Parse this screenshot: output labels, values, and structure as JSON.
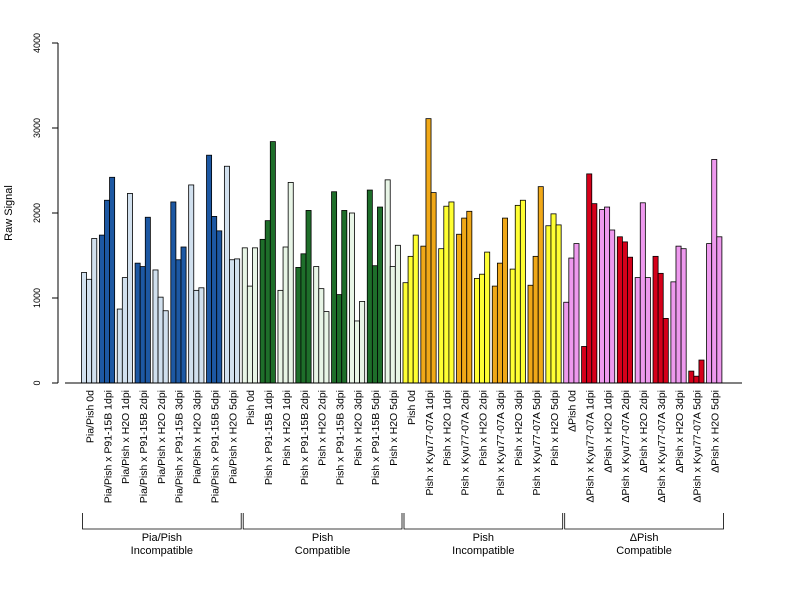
{
  "chart_data": {
    "type": "bar",
    "ylabel": "Raw Signal",
    "ylim": [
      0,
      4000
    ],
    "yticks": [
      0,
      1000,
      2000,
      3000,
      4000
    ],
    "categories": [
      "Pia/Pish 0d",
      "Pia/Pish x P91-15B 1dpi",
      "Pia/Pish x H2O 1dpi",
      "Pia/Pish x P91-15B 2dpi",
      "Pia/Pish x H2O 2dpi",
      "Pia/Pish x P91-15B 3dpi",
      "Pia/Pish x H2O 3dpi",
      "Pia/Pish x P91-15B 5dpi",
      "Pia/Pish x H2O 5dpi",
      "Pish 0d",
      "Pish x P91-15B 1dpi",
      "Pish x H2O 1dpi",
      "Pish x P91-15B 2dpi",
      "Pish x H2O 2dpi",
      "Pish x P91-15B 3dpi",
      "Pish x H2O 3dpi",
      "Pish x P91-15B 5dpi",
      "Pish x H2O 5dpi",
      "Pish 0d",
      "Pish x Kyu77-07A 1dpi",
      "Pish x H2O 1dpi",
      "Pish x Kyu77-07A 2dpi",
      "Pish x H2O 2dpi",
      "Pish x Kyu77-07A 3dpi",
      "Pish x H2O 3dpi",
      "Pish x Kyu77-07A 5dpi",
      "Pish x H2O 5dpi",
      "ΔPish 0d",
      "ΔPish x Kyu77-07A 1dpi",
      "ΔPish x H2O 1dpi",
      "ΔPish x Kyu77-07A 2dpi",
      "ΔPish x H2O 2dpi",
      "ΔPish x Kyu77-07A 3dpi",
      "ΔPish x H2O 3dpi",
      "ΔPish x Kyu77-07A 5dpi",
      "ΔPish x H2O 5dpi"
    ],
    "values": [
      [
        1300,
        1220,
        1700
      ],
      [
        1740,
        2150,
        2420
      ],
      [
        870,
        1240,
        2230
      ],
      [
        1410,
        1370,
        1950
      ],
      [
        1330,
        1010,
        850
      ],
      [
        2130,
        1450,
        1600
      ],
      [
        2330,
        1090,
        1120
      ],
      [
        2680,
        1960,
        1790
      ],
      [
        2550,
        1450,
        1460
      ],
      [
        1590,
        1140,
        1590
      ],
      [
        1690,
        1910,
        2840
      ],
      [
        1090,
        1600,
        2360
      ],
      [
        1360,
        1520,
        2030
      ],
      [
        1370,
        1110,
        840
      ],
      [
        2250,
        1040,
        2030
      ],
      [
        2000,
        730,
        960
      ],
      [
        2270,
        1380,
        2070
      ],
      [
        2390,
        1370,
        1620
      ],
      [
        1180,
        1490,
        1740
      ],
      [
        1610,
        3110,
        2240
      ],
      [
        1580,
        2080,
        2130
      ],
      [
        1750,
        1940,
        2020
      ],
      [
        1230,
        1280,
        1540
      ],
      [
        1140,
        1410,
        1940
      ],
      [
        1340,
        2090,
        2150
      ],
      [
        1150,
        1490,
        2310
      ],
      [
        1850,
        1990,
        1860
      ],
      [
        950,
        1470,
        1640
      ],
      [
        430,
        2460,
        2110
      ],
      [
        2040,
        2070,
        1800
      ],
      [
        1720,
        1660,
        1480
      ],
      [
        1240,
        2120,
        1240
      ],
      [
        1490,
        1290,
        760
      ],
      [
        1190,
        1610,
        1580
      ],
      [
        140,
        80,
        270
      ],
      [
        1640,
        2630,
        1720
      ]
    ],
    "groups": [
      {
        "label_line1": "Pia/Pish",
        "label_line2": "Incompatible",
        "start": 0,
        "end": 8,
        "light": "#d1e0ee",
        "dark": "#1d58a3"
      },
      {
        "label_line1": "Pish",
        "label_line2": "Compatible",
        "start": 9,
        "end": 17,
        "light": "#e8f5e6",
        "dark": "#1e6e2a"
      },
      {
        "label_line1": "Pish",
        "label_line2": "Incompatible",
        "start": 18,
        "end": 26,
        "light": "#ffff33",
        "dark": "#f0a818"
      },
      {
        "label_line1": "ΔPish",
        "label_line2": "Compatible",
        "start": 27,
        "end": 35,
        "light": "#ee99ee",
        "dark": "#d5001a"
      }
    ],
    "grid": false,
    "legend": "none"
  }
}
